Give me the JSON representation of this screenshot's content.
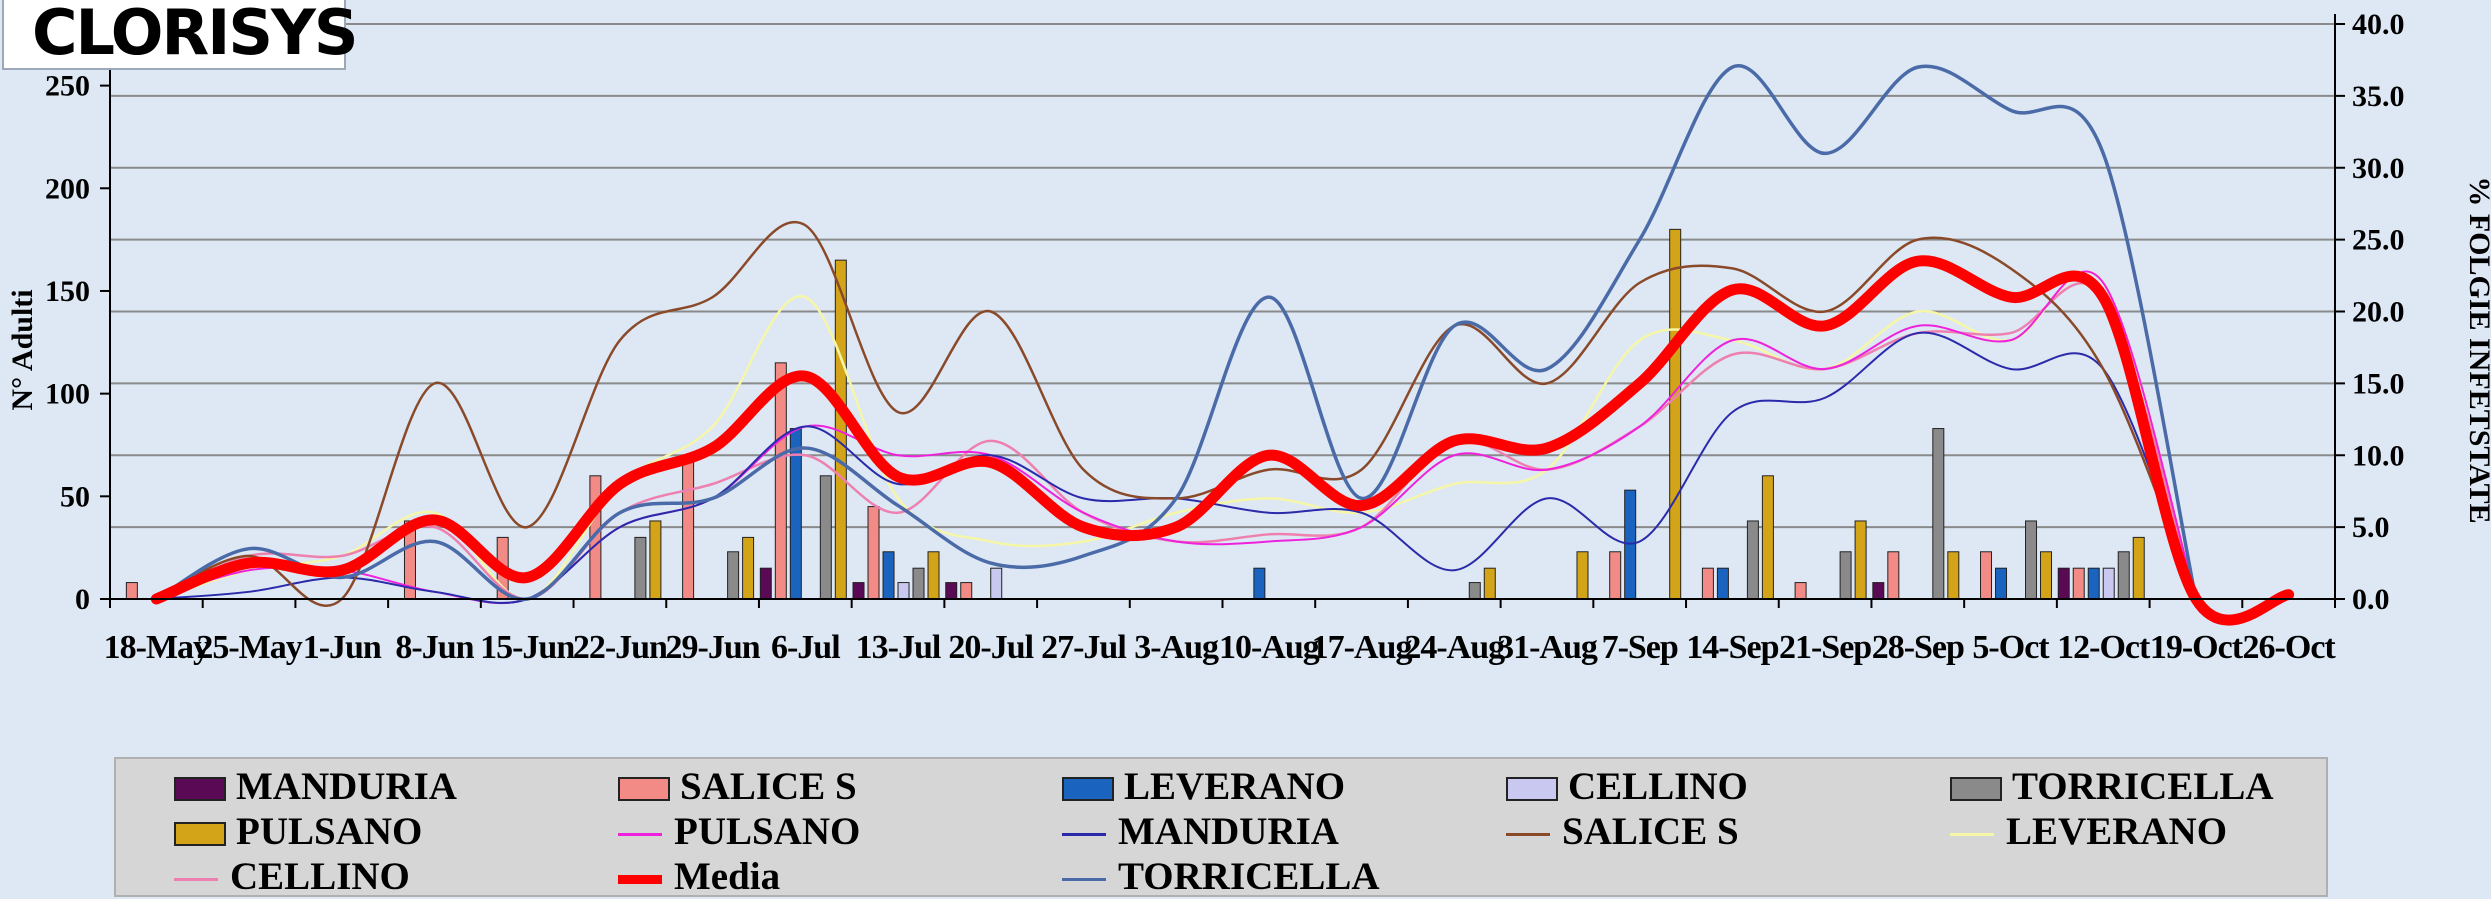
{
  "logo": {
    "text": "CLORISYS"
  },
  "colors": {
    "MANDURIA_bar": "#5a0a55",
    "SALICE_bar": "#f28a86",
    "LEVERANO_bar": "#1a64c0",
    "CELLINO_bar": "#c8c8f0",
    "TORRICELLA_bar": "#8a8a8a",
    "PULSANO_bar": "#d4a418",
    "PULSANO_line": "#ee22dd",
    "MANDURIA_line": "#2a2aaa",
    "SALICE_line": "#8a4a2a",
    "LEVERANO_line": "#f6f6a8",
    "CELLINO_line": "#ee80b0",
    "Media_line": "#ff0000",
    "TORRICELLA_line": "#4a6aa8"
  },
  "chart_data": {
    "type": "bar+line",
    "ylabel": "N° Adulti",
    "y2label": "% FOLGIE INFETSTATE",
    "ylim": [
      0,
      280
    ],
    "y2lim": [
      0,
      40
    ],
    "yticks": [
      "0",
      "50",
      "100",
      "150",
      "200",
      "250"
    ],
    "y2ticks": [
      "0.0",
      "5.0",
      "10.0",
      "15.0",
      "20.0",
      "25.0",
      "30.0",
      "35.0",
      "40.0"
    ],
    "categories": [
      "18-May",
      "25-May",
      "1-Jun",
      "8-Jun",
      "15-Jun",
      "22-Jun",
      "29-Jun",
      "6-Jul",
      "13-Jul",
      "20-Jul",
      "27-Jul",
      "3-Aug",
      "10-Aug",
      "17-Aug",
      "24-Aug",
      "31-Aug",
      "7-Sep",
      "14-Sep",
      "21-Sep",
      "28-Sep",
      "5-Oct",
      "12-Oct",
      "19-Oct",
      "26-Oct"
    ],
    "bar_series": [
      {
        "name": "MANDURIA",
        "values": [
          0,
          0,
          0,
          0,
          0,
          0,
          0,
          15,
          8,
          8,
          0,
          0,
          0,
          0,
          0,
          0,
          0,
          0,
          0,
          8,
          0,
          15,
          0,
          0
        ]
      },
      {
        "name": "SALICE S",
        "values": [
          8,
          0,
          0,
          38,
          30,
          60,
          68,
          115,
          45,
          8,
          0,
          0,
          0,
          0,
          0,
          0,
          23,
          15,
          8,
          23,
          23,
          15,
          0,
          0
        ]
      },
      {
        "name": "LEVERANO",
        "values": [
          0,
          0,
          0,
          0,
          0,
          0,
          0,
          83,
          23,
          0,
          0,
          0,
          15,
          0,
          0,
          0,
          53,
          15,
          0,
          0,
          15,
          15,
          0,
          0
        ]
      },
      {
        "name": "CELLINO",
        "values": [
          0,
          0,
          0,
          0,
          0,
          0,
          0,
          0,
          8,
          15,
          0,
          0,
          0,
          0,
          0,
          0,
          0,
          0,
          0,
          0,
          0,
          15,
          0,
          0
        ]
      },
      {
        "name": "TORRICELLA",
        "values": [
          0,
          0,
          0,
          0,
          0,
          30,
          23,
          60,
          15,
          0,
          0,
          0,
          0,
          0,
          8,
          0,
          0,
          38,
          23,
          83,
          38,
          23,
          0,
          0
        ]
      },
      {
        "name": "PULSANO",
        "values": [
          0,
          0,
          0,
          0,
          0,
          38,
          30,
          165,
          23,
          0,
          0,
          0,
          0,
          0,
          15,
          23,
          180,
          60,
          38,
          23,
          23,
          30,
          0,
          0
        ]
      }
    ],
    "line_series": [
      {
        "name": "PULSANO",
        "values": [
          0,
          2,
          2,
          0.5,
          0,
          5,
          7,
          12,
          10,
          10,
          6,
          4,
          4,
          5,
          10,
          9,
          12,
          18,
          16,
          19,
          18,
          22,
          0,
          0
        ]
      },
      {
        "name": "MANDURIA",
        "values": [
          0,
          0.5,
          1.5,
          0.5,
          0,
          5,
          7,
          12,
          8,
          10,
          7,
          7,
          6,
          6,
          2,
          7,
          4,
          13,
          14,
          18.5,
          16,
          16,
          0,
          0
        ]
      },
      {
        "name": "SALICE S",
        "values": [
          0,
          3,
          0,
          15,
          5,
          18,
          21,
          26,
          13,
          20,
          9,
          7,
          9,
          9,
          19,
          15,
          22,
          23,
          20,
          25,
          23,
          16,
          0,
          0
        ]
      },
      {
        "name": "LEVERANO",
        "values": [
          0,
          2,
          3,
          6,
          0,
          8,
          12,
          21,
          7,
          4,
          4,
          6,
          7,
          6,
          8,
          9,
          18,
          18,
          16,
          20,
          18,
          22,
          0,
          0
        ]
      },
      {
        "name": "CELLINO",
        "values": [
          0,
          3,
          3,
          5,
          0,
          6,
          8,
          10,
          6,
          11,
          6,
          4,
          4.5,
          5,
          11,
          9,
          12,
          17,
          16,
          18.5,
          18.5,
          21,
          0,
          0
        ]
      },
      {
        "name": "Media",
        "values": [
          0,
          2.5,
          2,
          5.5,
          1.5,
          8,
          10.5,
          15.5,
          8.5,
          9.5,
          5,
          5,
          10,
          6.5,
          11,
          10.5,
          15,
          21.5,
          19,
          23.5,
          21,
          21,
          0,
          0.3
        ]
      },
      {
        "name": "TORRICELLA",
        "values": [
          0,
          3.5,
          1.5,
          4,
          0,
          6,
          7,
          10.5,
          6.5,
          2.5,
          3,
          7,
          21,
          7,
          19,
          16,
          25,
          37,
          31,
          37,
          34,
          31,
          0,
          0
        ]
      }
    ]
  },
  "legend": [
    {
      "label": "MANDURIA",
      "kind": "bar",
      "color": "#5a0a55"
    },
    {
      "label": "SALICE S",
      "kind": "bar",
      "color": "#f28a86"
    },
    {
      "label": "LEVERANO",
      "kind": "bar",
      "color": "#1a64c0"
    },
    {
      "label": "CELLINO",
      "kind": "bar",
      "color": "#c8c8f0"
    },
    {
      "label": "TORRICELLA",
      "kind": "bar",
      "color": "#8a8a8a"
    },
    {
      "label": "PULSANO",
      "kind": "bar",
      "color": "#d4a418"
    },
    {
      "label": "PULSANO",
      "kind": "line",
      "color": "#ee22dd"
    },
    {
      "label": "MANDURIA",
      "kind": "line",
      "color": "#2a2aaa"
    },
    {
      "label": "SALICE S",
      "kind": "line",
      "color": "#8a4a2a"
    },
    {
      "label": "LEVERANO",
      "kind": "line",
      "color": "#f6f6a8"
    },
    {
      "label": "CELLINO",
      "kind": "line",
      "color": "#ee80b0"
    },
    {
      "label": "Media",
      "kind": "line",
      "color": "#ff0000"
    },
    {
      "label": "TORRICELLA",
      "kind": "line",
      "color": "#4a6aa8"
    }
  ]
}
